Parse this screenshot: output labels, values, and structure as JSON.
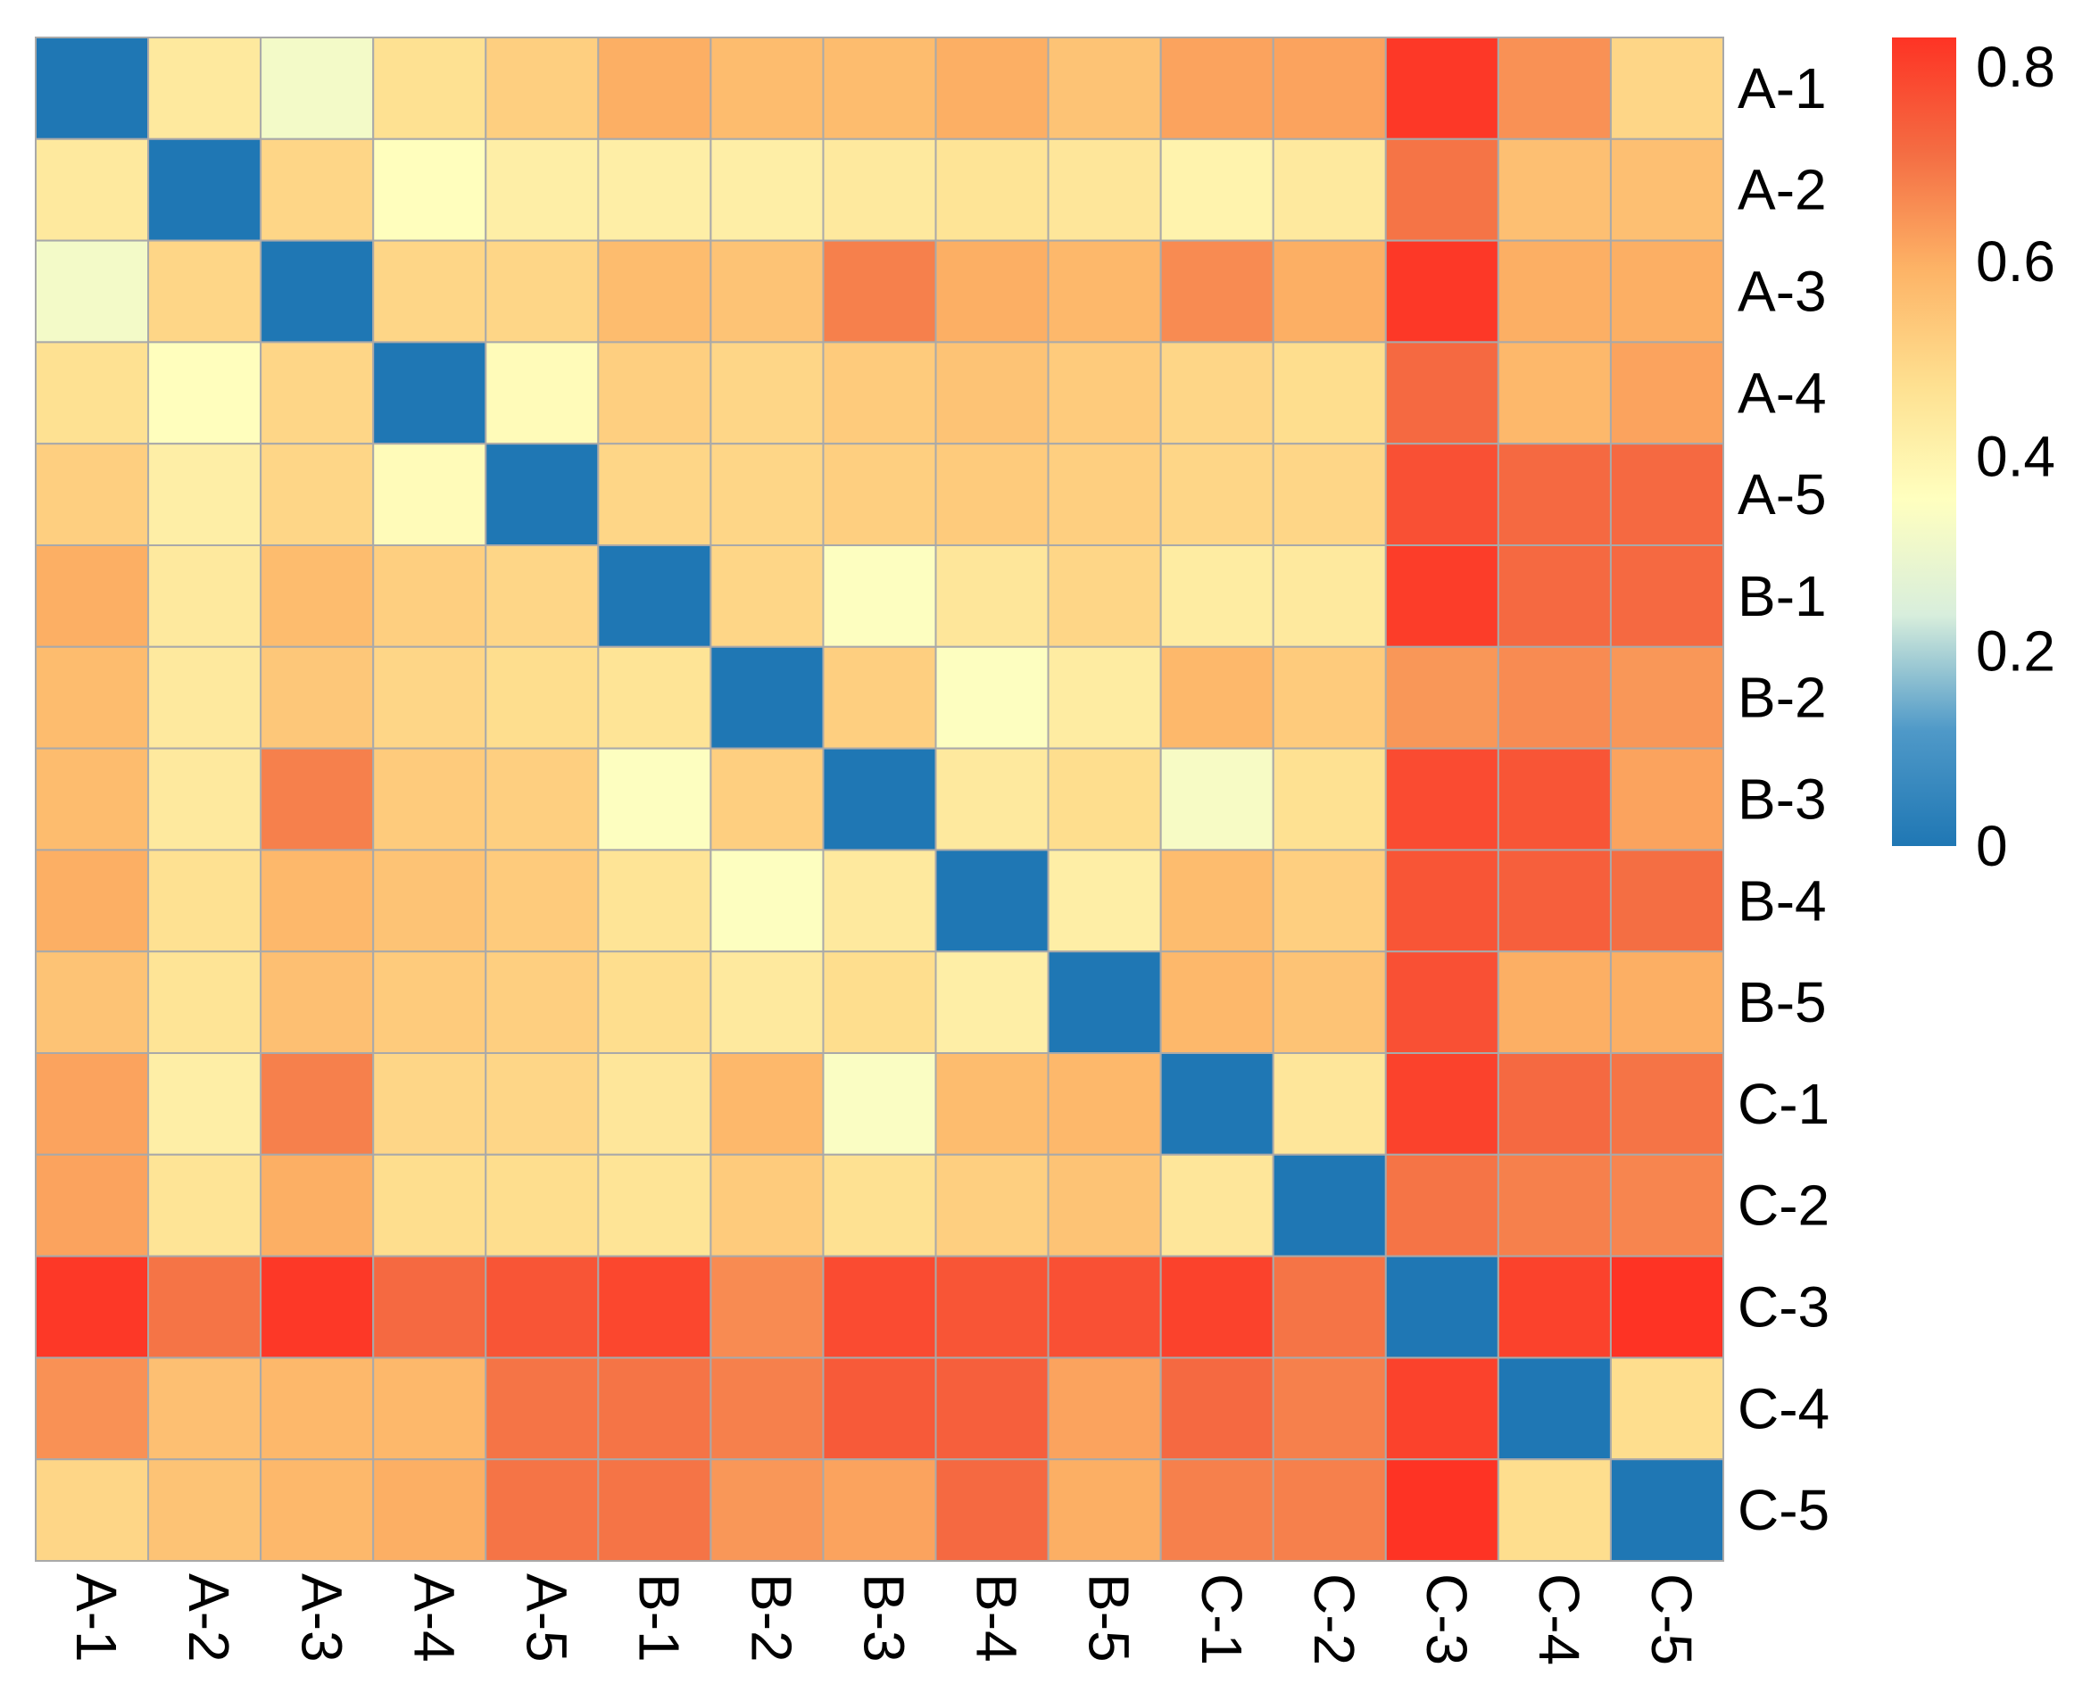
{
  "chart_data": {
    "type": "heatmap",
    "title": "",
    "xlabel": "",
    "ylabel": "",
    "rows": [
      "A-1",
      "A-2",
      "A-3",
      "A-4",
      "A-5",
      "B-1",
      "B-2",
      "B-3",
      "B-4",
      "B-5",
      "C-1",
      "C-2",
      "C-3",
      "C-4",
      "C-5"
    ],
    "columns": [
      "A-1",
      "A-2",
      "A-3",
      "A-4",
      "A-5",
      "B-1",
      "B-2",
      "B-3",
      "B-4",
      "B-5",
      "C-1",
      "C-2",
      "C-3",
      "C-4",
      "C-5"
    ],
    "values": [
      [
        0.0,
        0.44,
        0.32,
        0.47,
        0.52,
        0.6,
        0.57,
        0.57,
        0.6,
        0.55,
        0.62,
        0.62,
        0.82,
        0.65,
        0.5
      ],
      [
        0.44,
        0.0,
        0.5,
        0.36,
        0.42,
        0.42,
        0.42,
        0.44,
        0.46,
        0.45,
        0.4,
        0.44,
        0.7,
        0.56,
        0.56
      ],
      [
        0.32,
        0.5,
        0.0,
        0.5,
        0.5,
        0.57,
        0.55,
        0.68,
        0.6,
        0.58,
        0.66,
        0.6,
        0.82,
        0.6,
        0.6
      ],
      [
        0.47,
        0.36,
        0.5,
        0.0,
        0.37,
        0.52,
        0.5,
        0.53,
        0.55,
        0.53,
        0.5,
        0.48,
        0.72,
        0.58,
        0.62
      ],
      [
        0.52,
        0.42,
        0.5,
        0.37,
        0.0,
        0.5,
        0.5,
        0.52,
        0.53,
        0.52,
        0.5,
        0.5,
        0.77,
        0.72,
        0.72
      ],
      [
        0.6,
        0.44,
        0.57,
        0.52,
        0.5,
        0.0,
        0.5,
        0.35,
        0.45,
        0.5,
        0.43,
        0.44,
        0.81,
        0.72,
        0.72
      ],
      [
        0.57,
        0.44,
        0.54,
        0.5,
        0.48,
        0.46,
        0.0,
        0.52,
        0.35,
        0.43,
        0.58,
        0.53,
        0.64,
        0.66,
        0.64
      ],
      [
        0.57,
        0.44,
        0.68,
        0.53,
        0.52,
        0.35,
        0.52,
        0.0,
        0.44,
        0.48,
        0.33,
        0.47,
        0.78,
        0.76,
        0.62
      ],
      [
        0.6,
        0.47,
        0.58,
        0.55,
        0.53,
        0.46,
        0.35,
        0.44,
        0.0,
        0.42,
        0.57,
        0.52,
        0.76,
        0.74,
        0.71
      ],
      [
        0.55,
        0.46,
        0.56,
        0.53,
        0.52,
        0.48,
        0.44,
        0.48,
        0.42,
        0.0,
        0.58,
        0.55,
        0.77,
        0.6,
        0.6
      ],
      [
        0.62,
        0.42,
        0.68,
        0.5,
        0.5,
        0.45,
        0.58,
        0.34,
        0.57,
        0.58,
        0.0,
        0.45,
        0.8,
        0.72,
        0.7
      ],
      [
        0.62,
        0.46,
        0.6,
        0.48,
        0.48,
        0.46,
        0.53,
        0.47,
        0.52,
        0.55,
        0.45,
        0.0,
        0.7,
        0.68,
        0.67
      ],
      [
        0.82,
        0.7,
        0.82,
        0.72,
        0.76,
        0.79,
        0.66,
        0.78,
        0.76,
        0.77,
        0.8,
        0.7,
        0.0,
        0.8,
        0.83
      ],
      [
        0.65,
        0.56,
        0.58,
        0.58,
        0.7,
        0.7,
        0.68,
        0.75,
        0.74,
        0.62,
        0.72,
        0.68,
        0.8,
        0.0,
        0.48
      ],
      [
        0.5,
        0.55,
        0.58,
        0.6,
        0.7,
        0.7,
        0.64,
        0.62,
        0.72,
        0.6,
        0.68,
        0.68,
        0.83,
        0.48,
        0.0
      ]
    ],
    "colorbar": {
      "range": [
        0,
        0.83
      ],
      "ticks": [
        0,
        0.2,
        0.4,
        0.6,
        0.8
      ],
      "tick_labels": [
        "0",
        "0.2",
        "0.4",
        "0.6",
        "0.8"
      ]
    },
    "colormap": [
      "#1f77b4",
      "#4f99c8",
      "#d8eedc",
      "#ffffbf",
      "#fee090",
      "#fdb366",
      "#f46d43",
      "#fe3324"
    ]
  }
}
